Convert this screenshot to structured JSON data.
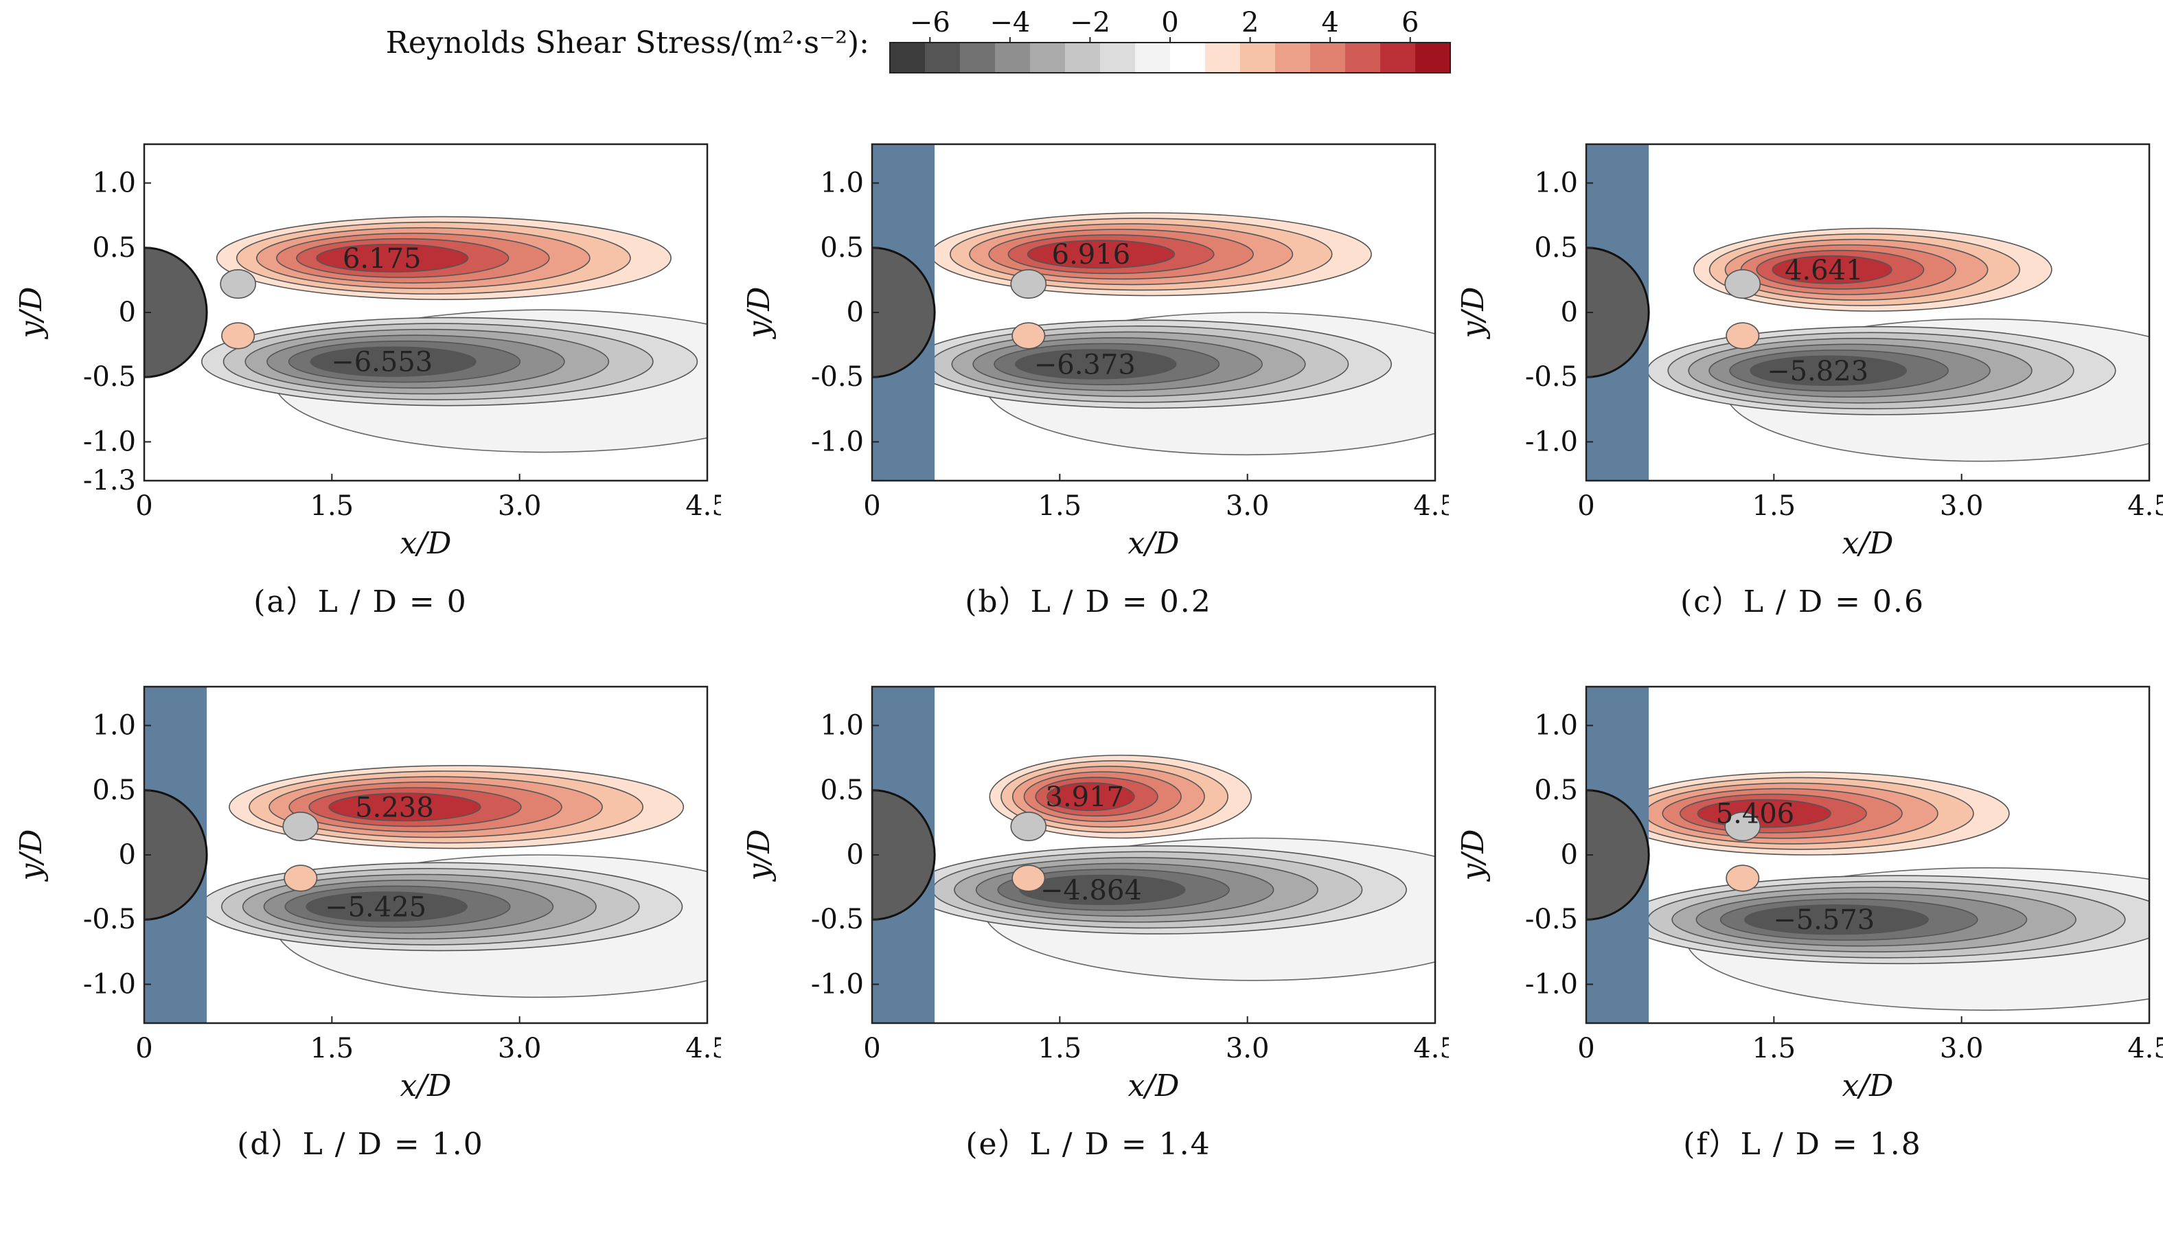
{
  "colorbar": {
    "title": "Reynolds Shear Stress/(m²·s⁻²):",
    "ticks": [
      -6,
      -4,
      -2,
      0,
      2,
      4,
      6
    ],
    "range": [
      -7,
      7
    ],
    "colors": [
      "#3c3c3c",
      "#555555",
      "#727272",
      "#8f8f8f",
      "#aaaaaa",
      "#c6c6c6",
      "#dcdcdc",
      "#f3f3f3",
      "#ffffff",
      "#fde0d0",
      "#f6c2a8",
      "#eda089",
      "#e0806f",
      "#cf5b54",
      "#bb2f36",
      "#a1141f"
    ]
  },
  "colors": {
    "wall": "#5f7f9c",
    "cylinder": "#5e5e5e",
    "frame": "#222222"
  },
  "chart_data": [
    {
      "type": "heatmap",
      "id": "a",
      "caption": "(a）L / D = 0",
      "xlabel": "x/D",
      "ylabel": "y/D",
      "xlim": [
        0,
        4.5
      ],
      "ylim": [
        -1.3,
        1.3
      ],
      "xticks": [
        "0",
        "1.5",
        "3.0",
        "4.5"
      ],
      "yticks": [
        "1.0",
        "0.5",
        "0",
        "-0.5",
        "-1.0",
        "-1.3"
      ],
      "wall": 0,
      "max": {
        "x": 1.9,
        "y": 0.42,
        "label": "6.175"
      },
      "min": {
        "x": 1.9,
        "y": -0.38,
        "label": "−6.553"
      },
      "posLen": 3.3,
      "negLen": 3.6
    },
    {
      "type": "heatmap",
      "id": "b",
      "caption": "(b）L / D = 0.2",
      "xlabel": "x/D",
      "ylabel": "y/D",
      "xlim": [
        0,
        4.5
      ],
      "ylim": [
        -1.3,
        1.3
      ],
      "xticks": [
        "0",
        "1.5",
        "3.0",
        "4.5"
      ],
      "yticks": [
        "1.0",
        "0.5",
        "0",
        "-0.5",
        "-1.0"
      ],
      "wall": 0.5,
      "max": {
        "x": 1.75,
        "y": 0.45,
        "label": "6.916"
      },
      "min": {
        "x": 1.7,
        "y": -0.4,
        "label": "−6.373"
      },
      "posLen": 3.2,
      "negLen": 3.5
    },
    {
      "type": "heatmap",
      "id": "c",
      "caption": "(c）L / D = 0.6",
      "xlabel": "x/D",
      "ylabel": "y/D",
      "xlim": [
        0,
        4.5
      ],
      "ylim": [
        -1.3,
        1.3
      ],
      "xticks": [
        "0",
        "1.5",
        "3.0",
        "4.5"
      ],
      "yticks": [
        "1.0",
        "0.5",
        "0",
        "-0.5",
        "-1.0"
      ],
      "wall": 0.5,
      "max": {
        "x": 1.9,
        "y": 0.33,
        "label": "4.641"
      },
      "min": {
        "x": 1.85,
        "y": -0.45,
        "label": "−5.823"
      },
      "posLen": 2.6,
      "negLen": 3.4
    },
    {
      "type": "heatmap",
      "id": "d",
      "caption": "(d）L / D = 1.0",
      "xlabel": "x/D",
      "ylabel": "y/D",
      "xlim": [
        0,
        4.5
      ],
      "ylim": [
        -1.3,
        1.3
      ],
      "xticks": [
        "0",
        "1.5",
        "3.0",
        "4.5"
      ],
      "yticks": [
        "1.0",
        "0.5",
        "0",
        "-0.5",
        "-1.0"
      ],
      "wall": 0.5,
      "max": {
        "x": 2.0,
        "y": 0.37,
        "label": "5.238"
      },
      "min": {
        "x": 1.85,
        "y": -0.4,
        "label": "−5.425"
      },
      "posLen": 3.3,
      "negLen": 3.5
    },
    {
      "type": "heatmap",
      "id": "e",
      "caption": "(e）L / D = 1.4",
      "xlabel": "x/D",
      "ylabel": "y/D",
      "xlim": [
        0,
        4.5
      ],
      "ylim": [
        -1.3,
        1.3
      ],
      "xticks": [
        "0",
        "1.5",
        "3.0",
        "4.5"
      ],
      "yticks": [
        "1.0",
        "0.5",
        "0",
        "-0.5",
        "-1.0"
      ],
      "wall": 0.5,
      "max": {
        "x": 1.7,
        "y": 0.45,
        "label": "3.917"
      },
      "min": {
        "x": 1.75,
        "y": -0.27,
        "label": "−4.864"
      },
      "posLen": 1.9,
      "negLen": 3.6
    },
    {
      "type": "heatmap",
      "id": "f",
      "caption": "(f）L / D = 1.8",
      "xlabel": "x/D",
      "ylabel": "y/D",
      "xlim": [
        0,
        4.5
      ],
      "ylim": [
        -1.3,
        1.3
      ],
      "xticks": [
        "0",
        "1.5",
        "3.0",
        "4.5"
      ],
      "yticks": [
        "1.0",
        "0.5",
        "0",
        "-0.5",
        "-1.0"
      ],
      "wall": 0.5,
      "max": {
        "x": 1.35,
        "y": 0.32,
        "label": "5.406"
      },
      "min": {
        "x": 1.9,
        "y": -0.5,
        "label": "−5.573"
      },
      "posLen": 2.9,
      "negLen": 4.0
    }
  ]
}
